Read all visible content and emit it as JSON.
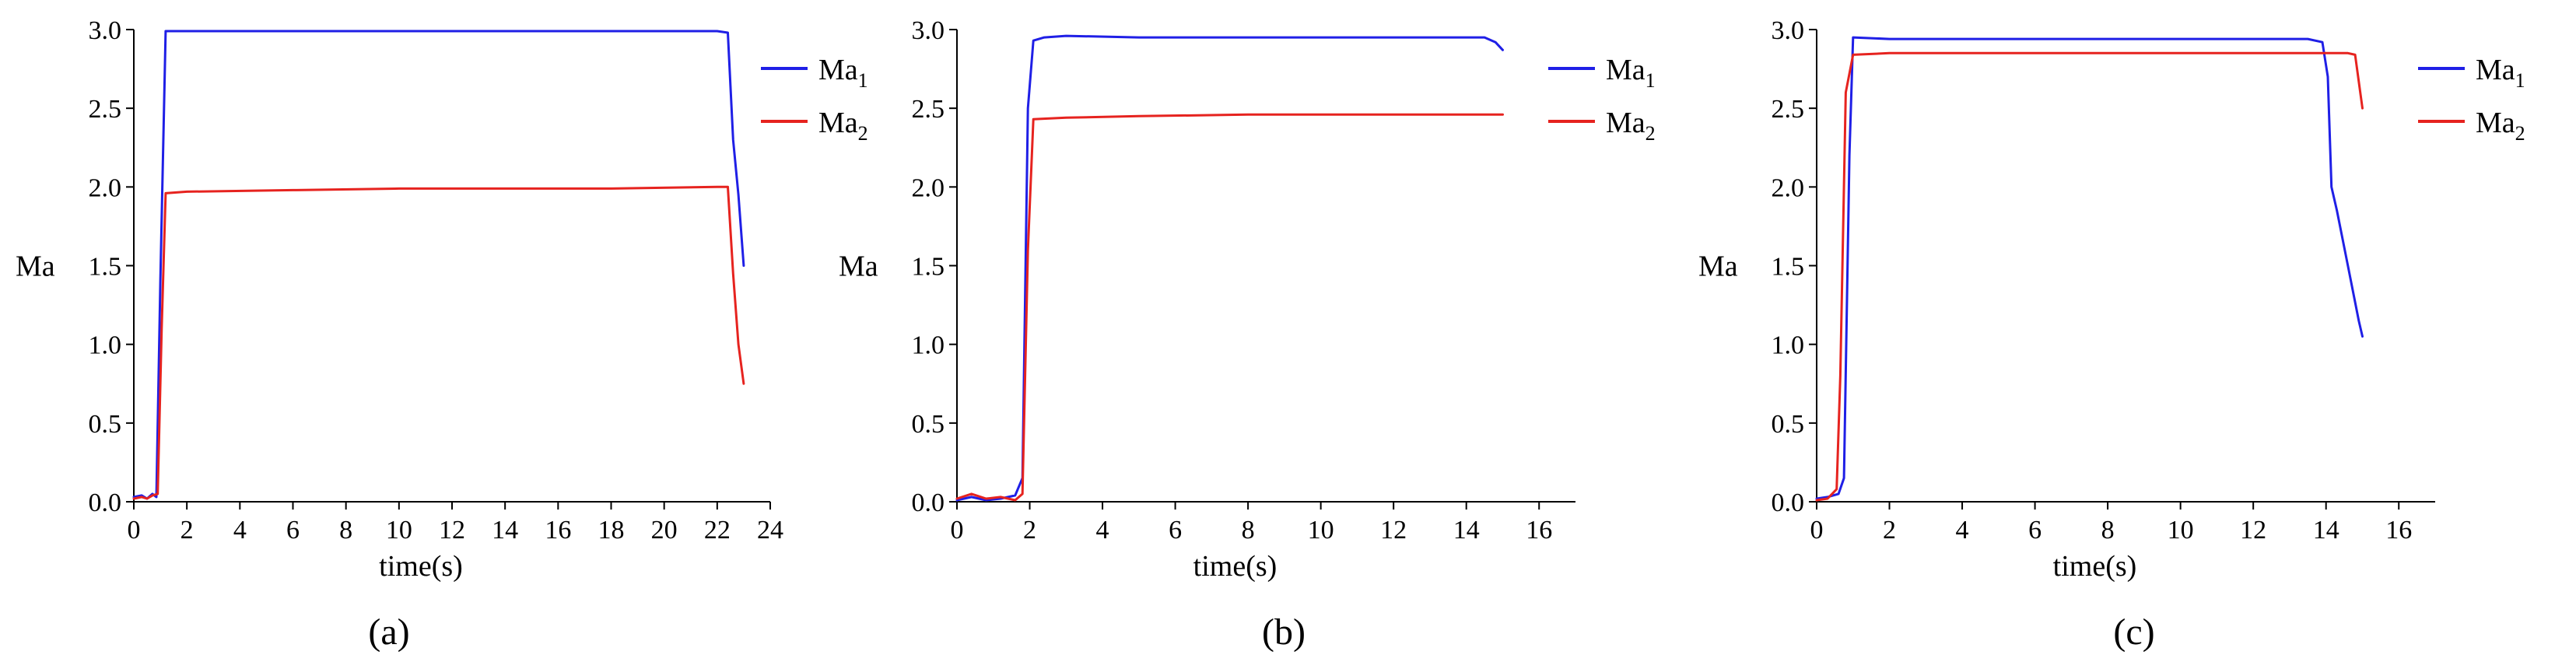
{
  "colors": {
    "ma1": "#1f1fe6",
    "ma2": "#e6231f",
    "axis": "#000000"
  },
  "chart_data": [
    {
      "type": "line",
      "caption": "(a)",
      "xlabel": "time(s)",
      "ylabel": "Ma",
      "xlim": [
        0,
        24
      ],
      "ylim": [
        0,
        3.0
      ],
      "xticks": [
        0,
        2,
        4,
        6,
        8,
        10,
        12,
        14,
        16,
        18,
        20,
        22,
        24
      ],
      "yticks": [
        0.0,
        0.5,
        1.0,
        1.5,
        2.0,
        2.5,
        3.0
      ],
      "xtick_labels": [
        "0",
        "2",
        "4",
        "6",
        "8",
        "10",
        "12",
        "14",
        "16",
        "18",
        "20",
        "22",
        "24"
      ],
      "ytick_labels": [
        "0.0",
        "0.5",
        "1.0",
        "1.5",
        "2.0",
        "2.5",
        "3.0"
      ],
      "legend_position": "right",
      "series": [
        {
          "name": "Ma",
          "name_sub": "1",
          "color": "#1f1fe6",
          "x": [
            0,
            0.3,
            0.5,
            0.7,
            0.85,
            1.0,
            1.2,
            2,
            6,
            10,
            14,
            18,
            22,
            22.4,
            22.6,
            22.8,
            23.0
          ],
          "y": [
            0.03,
            0.04,
            0.02,
            0.05,
            0.03,
            1.4,
            2.99,
            2.99,
            2.99,
            2.99,
            2.99,
            2.99,
            2.99,
            2.98,
            2.3,
            1.95,
            1.5
          ]
        },
        {
          "name": "Ma",
          "name_sub": "2",
          "color": "#e6231f",
          "x": [
            0,
            0.3,
            0.5,
            0.7,
            0.9,
            1.05,
            1.2,
            2,
            6,
            10,
            14,
            18,
            22,
            22.4,
            22.6,
            22.8,
            23.0
          ],
          "y": [
            0.02,
            0.03,
            0.02,
            0.04,
            0.05,
            1.1,
            1.96,
            1.97,
            1.98,
            1.99,
            1.99,
            1.99,
            2.0,
            2.0,
            1.45,
            1.0,
            0.75
          ]
        }
      ]
    },
    {
      "type": "line",
      "caption": "(b)",
      "xlabel": "time(s)",
      "ylabel": "Ma",
      "xlim": [
        0,
        17
      ],
      "ylim": [
        0,
        3.0
      ],
      "xticks": [
        0,
        2,
        4,
        6,
        8,
        10,
        12,
        14,
        16
      ],
      "yticks": [
        0.0,
        0.5,
        1.0,
        1.5,
        2.0,
        2.5,
        3.0
      ],
      "xtick_labels": [
        "0",
        "2",
        "4",
        "6",
        "8",
        "10",
        "12",
        "14",
        "16"
      ],
      "ytick_labels": [
        "0.0",
        "0.5",
        "1.0",
        "1.5",
        "2.0",
        "2.5",
        "3.0"
      ],
      "legend_position": "right",
      "series": [
        {
          "name": "Ma",
          "name_sub": "1",
          "color": "#1f1fe6",
          "x": [
            0,
            0.4,
            0.8,
            1.2,
            1.6,
            1.8,
            1.95,
            2.1,
            2.4,
            3,
            5,
            8,
            11,
            13,
            14.5,
            14.8,
            15.0
          ],
          "y": [
            0.01,
            0.03,
            0.01,
            0.02,
            0.04,
            0.15,
            2.5,
            2.93,
            2.95,
            2.96,
            2.95,
            2.95,
            2.95,
            2.95,
            2.95,
            2.92,
            2.87
          ]
        },
        {
          "name": "Ma",
          "name_sub": "2",
          "color": "#e6231f",
          "x": [
            0,
            0.4,
            0.8,
            1.2,
            1.6,
            1.8,
            1.95,
            2.1,
            3,
            5,
            8,
            11,
            14,
            15.0
          ],
          "y": [
            0.02,
            0.05,
            0.02,
            0.03,
            0.01,
            0.05,
            1.6,
            2.43,
            2.44,
            2.45,
            2.46,
            2.46,
            2.46,
            2.46
          ]
        }
      ]
    },
    {
      "type": "line",
      "caption": "(c)",
      "xlabel": "time(s)",
      "ylabel": "Ma",
      "xlim": [
        0,
        17
      ],
      "ylim": [
        0,
        3.0
      ],
      "xticks": [
        0,
        2,
        4,
        6,
        8,
        10,
        12,
        14,
        16
      ],
      "yticks": [
        0.0,
        0.5,
        1.0,
        1.5,
        2.0,
        2.5,
        3.0
      ],
      "xtick_labels": [
        "0",
        "2",
        "4",
        "6",
        "8",
        "10",
        "12",
        "14",
        "16"
      ],
      "ytick_labels": [
        "0.0",
        "0.5",
        "1.0",
        "1.5",
        "2.0",
        "2.5",
        "3.0"
      ],
      "legend_position": "right",
      "series": [
        {
          "name": "Ma",
          "name_sub": "1",
          "color": "#1f1fe6",
          "x": [
            0,
            0.3,
            0.6,
            0.75,
            0.9,
            1.0,
            2,
            6,
            10,
            13.5,
            13.9,
            14.05,
            14.15,
            14.3,
            14.6,
            14.9,
            15.0
          ],
          "y": [
            0.02,
            0.03,
            0.05,
            0.15,
            2.2,
            2.95,
            2.94,
            2.94,
            2.94,
            2.94,
            2.92,
            2.7,
            2.0,
            1.85,
            1.5,
            1.15,
            1.05
          ]
        },
        {
          "name": "Ma",
          "name_sub": "2",
          "color": "#e6231f",
          "x": [
            0,
            0.3,
            0.55,
            0.65,
            0.8,
            1.0,
            2,
            6,
            10,
            14,
            14.6,
            14.8,
            15.0
          ],
          "y": [
            0.01,
            0.02,
            0.08,
            0.8,
            2.6,
            2.84,
            2.85,
            2.85,
            2.85,
            2.85,
            2.85,
            2.84,
            2.5
          ]
        }
      ]
    }
  ]
}
